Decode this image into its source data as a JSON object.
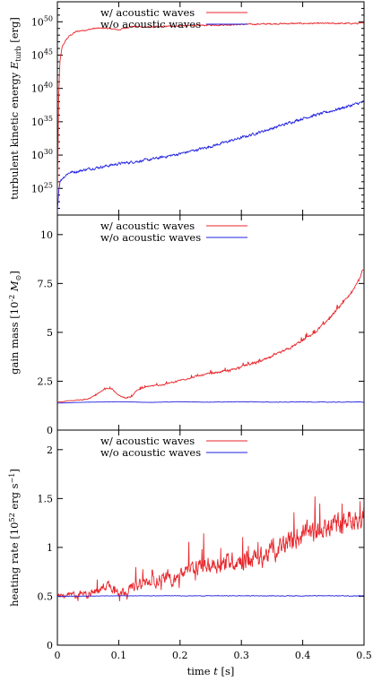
{
  "chart_data": [
    {
      "type": "line",
      "ylabel": "turbulent kinetic energy E_turb [erg]",
      "ylabel_parts": [
        "turbulent kinetic energy ",
        "E",
        "turb",
        " [erg]"
      ],
      "yscale": "log",
      "ylim": [
        1e+21,
        1e+53
      ],
      "yticks": [
        25,
        30,
        35,
        40,
        45,
        50
      ],
      "xlim": [
        0,
        0.5
      ],
      "legend_position": "top-center",
      "series": [
        {
          "name": "w/  acoustic waves",
          "color": "#e8262b",
          "x": [
            0,
            0.002,
            0.004,
            0.008,
            0.015,
            0.02,
            0.03,
            0.04,
            0.05,
            0.06,
            0.08,
            0.1,
            0.12,
            0.15,
            0.2,
            0.25,
            0.3,
            0.35,
            0.4,
            0.45,
            0.5
          ],
          "y_log10": [
            23,
            38,
            44,
            46.3,
            47.4,
            47.9,
            48.5,
            48.7,
            48.8,
            49.0,
            49.05,
            48.8,
            49.3,
            49.2,
            49.4,
            49.5,
            49.6,
            49.7,
            49.75,
            49.75,
            49.75
          ],
          "noise": 0.18
        },
        {
          "name": "w/o acoustic waves",
          "color": "#2222e0",
          "x": [
            0,
            0.002,
            0.004,
            0.008,
            0.015,
            0.02,
            0.03,
            0.05,
            0.07,
            0.1,
            0.15,
            0.2,
            0.25,
            0.3,
            0.35,
            0.4,
            0.45,
            0.5
          ],
          "y_log10": [
            21.5,
            24.5,
            26.0,
            26.5,
            27.1,
            27.4,
            27.5,
            27.9,
            28.2,
            28.7,
            29.3,
            30.2,
            31.3,
            32.6,
            34.0,
            35.5,
            36.7,
            38.0
          ],
          "noise": 0.35
        }
      ]
    },
    {
      "type": "line",
      "ylabel": "gain mass [10^-2 M_sun]",
      "ylabel_parts": [
        "gain mass [10",
        "-2",
        " M",
        "⊙",
        "]"
      ],
      "ylim": [
        0,
        11
      ],
      "yticks": [
        0,
        2.5,
        5,
        7.5,
        10
      ],
      "xlim": [
        0,
        0.5
      ],
      "legend_position": "top-center",
      "series": [
        {
          "name": "w/  acoustic waves",
          "color": "#e8262b",
          "x": [
            0,
            0.02,
            0.04,
            0.05,
            0.06,
            0.07,
            0.08,
            0.09,
            0.1,
            0.11,
            0.12,
            0.13,
            0.15,
            0.17,
            0.2,
            0.22,
            0.25,
            0.28,
            0.3,
            0.33,
            0.35,
            0.38,
            0.4,
            0.42,
            0.44,
            0.46,
            0.48,
            0.49,
            0.5
          ],
          "y": [
            1.42,
            1.5,
            1.55,
            1.6,
            1.75,
            1.95,
            2.15,
            2.1,
            1.75,
            1.65,
            1.7,
            2.05,
            2.25,
            2.3,
            2.55,
            2.7,
            2.9,
            3.05,
            3.25,
            3.5,
            3.75,
            4.2,
            4.6,
            5.0,
            5.6,
            6.3,
            7.0,
            7.6,
            8.3
          ],
          "noise": 0.11
        },
        {
          "name": "w/o acoustic waves",
          "color": "#2222e0",
          "x": [
            0,
            0.05,
            0.1,
            0.15,
            0.2,
            0.25,
            0.3,
            0.35,
            0.4,
            0.45,
            0.5
          ],
          "y": [
            1.38,
            1.43,
            1.45,
            1.42,
            1.45,
            1.43,
            1.45,
            1.43,
            1.44,
            1.43,
            1.44
          ],
          "noise": 0.025
        }
      ]
    },
    {
      "type": "line",
      "ylabel": "heating rate [10^52 erg s^-1]",
      "ylabel_parts": [
        "heating rate [10",
        "52",
        " erg s",
        "−1",
        "]"
      ],
      "ylim": [
        0,
        2.2
      ],
      "yticks": [
        0,
        0.5,
        1,
        1.5,
        2
      ],
      "xlim": [
        0,
        0.5
      ],
      "xticks": [
        0,
        0.1,
        0.2,
        0.3,
        0.4,
        0.5
      ],
      "xlabel": "time t [s]",
      "xlabel_parts": [
        "time ",
        "t",
        " [s]"
      ],
      "legend_position": "top-center",
      "series": [
        {
          "name": "w/  acoustic waves",
          "color": "#e8262b",
          "x": [
            0,
            0.02,
            0.04,
            0.06,
            0.07,
            0.08,
            0.09,
            0.1,
            0.11,
            0.12,
            0.14,
            0.16,
            0.18,
            0.2,
            0.22,
            0.25,
            0.28,
            0.3,
            0.33,
            0.35,
            0.38,
            0.4,
            0.42,
            0.44,
            0.46,
            0.48,
            0.5
          ],
          "y": [
            0.5,
            0.51,
            0.52,
            0.54,
            0.57,
            0.62,
            0.6,
            0.55,
            0.56,
            0.58,
            0.63,
            0.67,
            0.68,
            0.72,
            0.78,
            0.82,
            0.86,
            0.88,
            0.9,
            0.95,
            1.05,
            1.12,
            1.15,
            1.2,
            1.25,
            1.3,
            1.3
          ],
          "noise": 0.2
        },
        {
          "name": "w/o acoustic waves",
          "color": "#2222e0",
          "x": [
            0,
            0.1,
            0.2,
            0.3,
            0.4,
            0.5
          ],
          "y": [
            0.5,
            0.505,
            0.505,
            0.505,
            0.505,
            0.505
          ],
          "noise": 0.007
        }
      ]
    }
  ]
}
